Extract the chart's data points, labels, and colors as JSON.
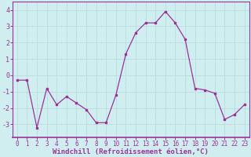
{
  "x": [
    0,
    1,
    2,
    3,
    4,
    5,
    6,
    7,
    8,
    9,
    10,
    11,
    12,
    13,
    14,
    15,
    16,
    17,
    18,
    19,
    20,
    21,
    22,
    23
  ],
  "y": [
    -0.3,
    -0.3,
    -3.2,
    -0.8,
    -1.8,
    -1.3,
    -1.7,
    -2.1,
    -2.9,
    -2.9,
    -1.2,
    1.3,
    2.6,
    3.2,
    3.2,
    3.9,
    3.2,
    2.2,
    -0.8,
    -0.9,
    -1.1,
    -2.7,
    -2.4,
    -1.8
  ],
  "line_color": "#993399",
  "marker": "s",
  "marker_size": 2.0,
  "bg_color": "#d0eef0",
  "grid_color": "#b8dde0",
  "xlabel": "Windchill (Refroidissement éolien,°C)",
  "xlabel_color": "#993399",
  "tick_color": "#993399",
  "spine_color": "#993399",
  "ylim": [
    -3.8,
    4.5
  ],
  "xlim": [
    -0.5,
    23.5
  ],
  "yticks": [
    -3,
    -2,
    -1,
    0,
    1,
    2,
    3,
    4
  ],
  "xticks": [
    0,
    1,
    2,
    3,
    4,
    5,
    6,
    7,
    8,
    9,
    10,
    11,
    12,
    13,
    14,
    15,
    16,
    17,
    18,
    19,
    20,
    21,
    22,
    23
  ],
  "tick_fontsize": 5.5,
  "xlabel_fontsize": 6.5
}
